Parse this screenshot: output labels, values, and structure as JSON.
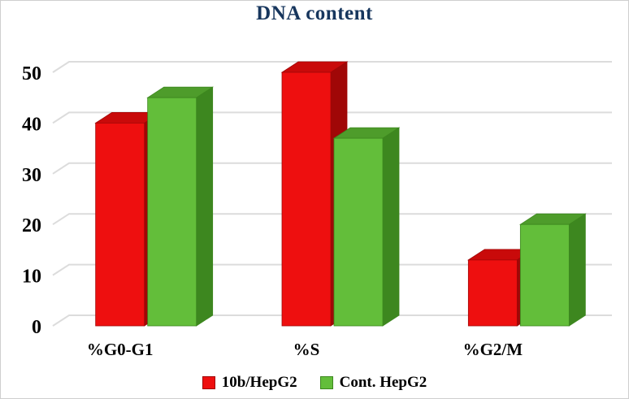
{
  "title": "DNA content",
  "chart_data": {
    "type": "bar",
    "style": "3d-clustered-column",
    "title": "DNA content",
    "categories": [
      "%G0-G1",
      "%S",
      "%G2/M"
    ],
    "series": [
      {
        "name": "10b/HepG2",
        "values": [
          40,
          50,
          13
        ],
        "color": "#ee0f0f",
        "top_color": "#c90a0a",
        "side_color": "#a00707"
      },
      {
        "name": "Cont. HepG2",
        "values": [
          45,
          37,
          20
        ],
        "color": "#63be3a",
        "top_color": "#4e9c2b",
        "side_color": "#3d871f"
      }
    ],
    "xlabel": "",
    "ylabel": "",
    "ylim": [
      0,
      50
    ],
    "yticks": [
      0,
      10,
      20,
      30,
      40,
      50
    ],
    "grid": true,
    "legend_position": "bottom"
  },
  "colors": {
    "title": "#17365d",
    "grid": "#dcdcdc",
    "axis_text": "#000000",
    "background": "#ffffff",
    "border": "#cfcfcf"
  }
}
